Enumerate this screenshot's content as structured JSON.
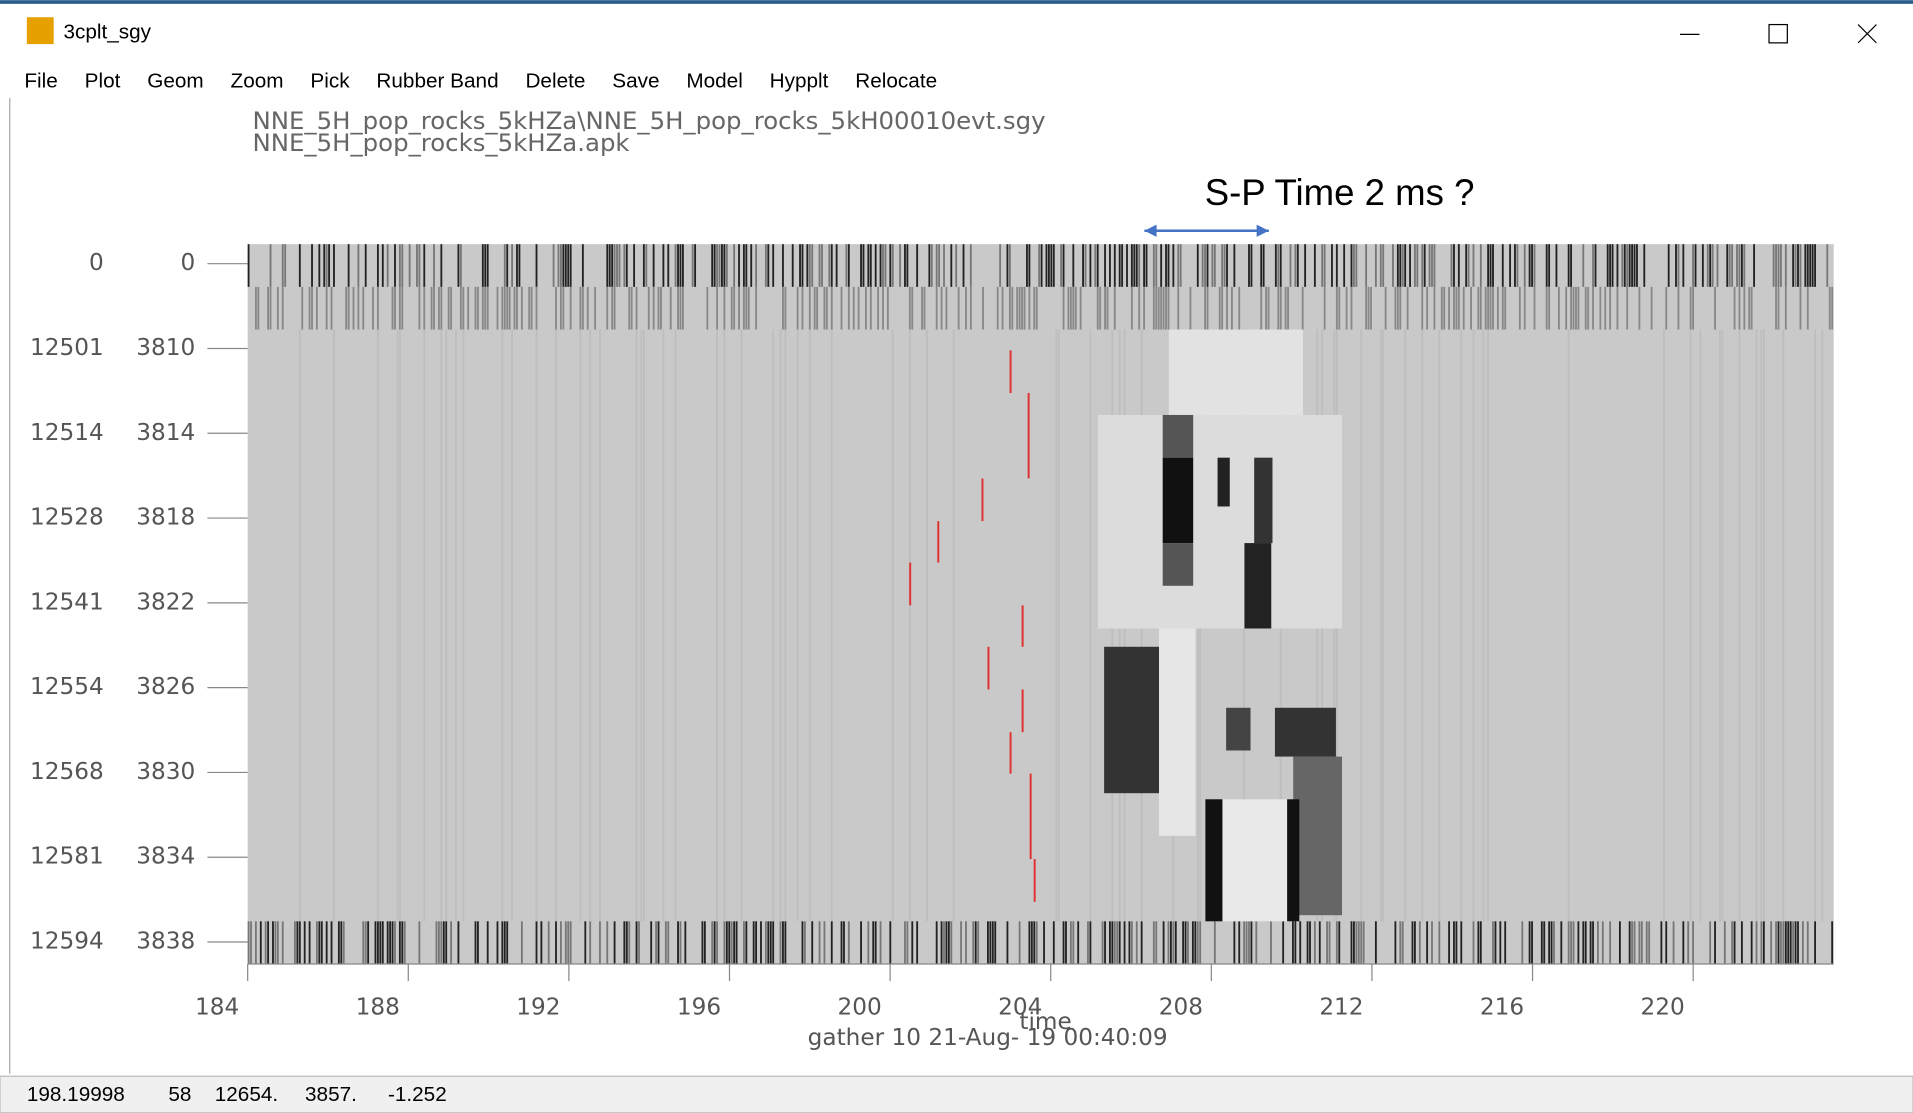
{
  "window": {
    "title": "3cplt_sgy"
  },
  "menu": [
    "File",
    "Plot",
    "Geom",
    "Zoom",
    "Pick",
    "Rubber Band",
    "Delete",
    "Save",
    "Model",
    "Hypplt",
    "Relocate"
  ],
  "plot": {
    "files": [
      "NNE_5H_pop_rocks_5kHZa\\NNE_5H_pop_rocks_5kH00010evt.sgy",
      "NNE_5H_pop_rocks_5kHZa.apk"
    ],
    "annotation": "S-P Time 2 ms ?",
    "rows": [
      [
        "0",
        "0"
      ],
      [
        "12501",
        "3810"
      ],
      [
        "12514",
        "3814"
      ],
      [
        "12528",
        "3818"
      ],
      [
        "12541",
        "3822"
      ],
      [
        "12554",
        "3826"
      ],
      [
        "12568",
        "3830"
      ],
      [
        "12581",
        "3834"
      ],
      [
        "12594",
        "3838"
      ]
    ],
    "xlim": [
      184,
      223.5
    ],
    "xticks": [
      184,
      188,
      192,
      196,
      200,
      204,
      208,
      212,
      216,
      220
    ],
    "x_label": "time",
    "gather_label": "gather   10 21-Aug- 19  00:40:09",
    "picks": [
      203.0,
      203.45,
      202.3,
      201.2,
      200.5,
      203.3,
      202.45,
      203.3,
      203.0,
      203.5,
      203.6
    ]
  },
  "status": [
    "198.19998",
    "58",
    "12654.",
    "3857.",
    "-1.252"
  ]
}
